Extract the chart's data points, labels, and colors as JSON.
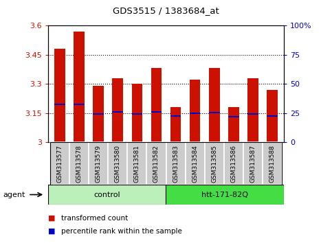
{
  "title": "GDS3515 / 1383684_at",
  "samples": [
    "GSM313577",
    "GSM313578",
    "GSM313579",
    "GSM313580",
    "GSM313581",
    "GSM313582",
    "GSM313583",
    "GSM313584",
    "GSM313585",
    "GSM313586",
    "GSM313587",
    "GSM313588"
  ],
  "transformed_counts": [
    3.48,
    3.57,
    3.29,
    3.33,
    3.3,
    3.38,
    3.18,
    3.32,
    3.38,
    3.18,
    3.33,
    3.27
  ],
  "percentile_ranks": [
    3.195,
    3.195,
    3.145,
    3.155,
    3.145,
    3.155,
    3.135,
    3.148,
    3.152,
    3.132,
    3.145,
    3.135
  ],
  "ylim": [
    3.0,
    3.6
  ],
  "y_ticks": [
    3.0,
    3.15,
    3.3,
    3.45,
    3.6
  ],
  "y_tick_labels": [
    "3",
    "3.15",
    "3.3",
    "3.45",
    "3.6"
  ],
  "right_y_ticks": [
    0,
    25,
    50,
    75,
    100
  ],
  "right_y_tick_labels": [
    "0",
    "25",
    "50",
    "75",
    "100%"
  ],
  "groups": [
    {
      "label": "control",
      "start": 0,
      "end": 6,
      "color": "#bbf0bb"
    },
    {
      "label": "htt-171-82Q",
      "start": 6,
      "end": 12,
      "color": "#44dd44"
    }
  ],
  "bar_color": "#cc1100",
  "percentile_color": "#0000cc",
  "bar_width": 0.55,
  "axis_label_color_left": "#cc1100",
  "axis_label_color_right": "#0000cc",
  "agent_label": "agent",
  "legend_items": [
    {
      "label": "transformed count",
      "color": "#cc1100"
    },
    {
      "label": "percentile rank within the sample",
      "color": "#0000cc"
    }
  ],
  "sample_area_bg": "#cccccc",
  "percentile_bar_height": 0.008
}
